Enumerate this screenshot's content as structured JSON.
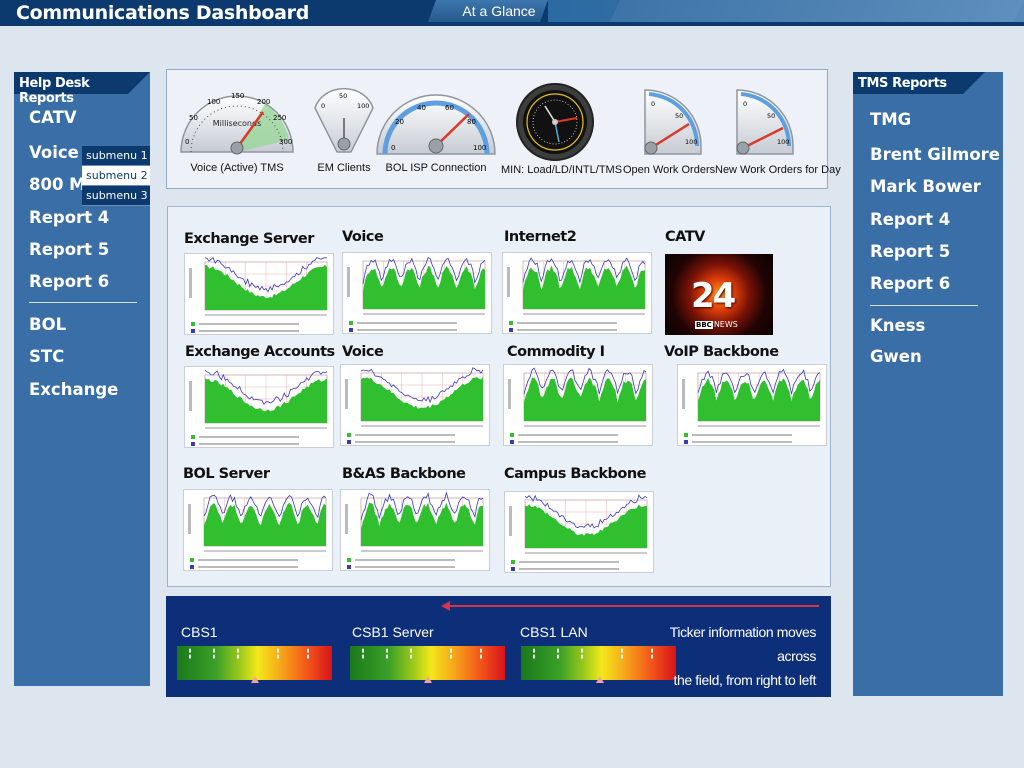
{
  "header": {
    "title": "Communications Dashboard",
    "tab": "At a Glance"
  },
  "left_panel": {
    "title": "Help Desk Reports",
    "items": [
      "CATV",
      "Voice",
      "800 MH",
      "Report 4",
      "Report 5",
      "Report 6"
    ],
    "items2": [
      "BOL",
      "STC",
      "Exchange"
    ],
    "submenu": [
      "submenu 1",
      "submenu 2",
      "submenu 3"
    ]
  },
  "right_panel": {
    "title": "TMS Reports",
    "items": [
      "TMG",
      "Brent Gilmore",
      "Mark Bower",
      "Report 4",
      "Report 5",
      "Report 6"
    ],
    "items2": [
      "Kness",
      "Gwen"
    ]
  },
  "gauges": [
    {
      "label": "Voice (Active) TMS",
      "unit": "Milliseconds",
      "ticks": [
        "0",
        "50",
        "100",
        "150",
        "200",
        "250",
        "300"
      ]
    },
    {
      "label": "EM Clients",
      "ticks": [
        "0",
        "50",
        "100"
      ]
    },
    {
      "label": "BOL ISP Connection",
      "ticks": [
        "0",
        "20",
        "40",
        "60",
        "80",
        "100"
      ]
    },
    {
      "label": "MIN: Load/LD/INTL/TMS"
    },
    {
      "label": "Open Work Orders",
      "ticks": [
        "0",
        "50",
        "100"
      ]
    },
    {
      "label": "New Work Orders for Day",
      "ticks": [
        "0",
        "50",
        "100"
      ]
    }
  ],
  "graphs": [
    {
      "title": "Exchange Server"
    },
    {
      "title": "Voice"
    },
    {
      "title": "Internet2"
    },
    {
      "title": "CATV"
    },
    {
      "title": "Exchange Accounts"
    },
    {
      "title": "Voice"
    },
    {
      "title": "Commodity I"
    },
    {
      "title": "VoIP Backbone"
    },
    {
      "title": "BOL Server"
    },
    {
      "title": "B&AS Backbone"
    },
    {
      "title": "Campus Backbone"
    }
  ],
  "catv_image": {
    "number": "24",
    "brand": "BBC",
    "text": "NEWS"
  },
  "ticker": {
    "items": [
      "CBS1",
      "CSB1 Server",
      "CBS1 LAN"
    ],
    "note_line1": "Ticker information moves across",
    "note_line2": "the field, from right to left"
  },
  "colors": {
    "header": "#0c3a6e",
    "panel": "#3a6ea6",
    "ticker": "#0d2f7a"
  }
}
